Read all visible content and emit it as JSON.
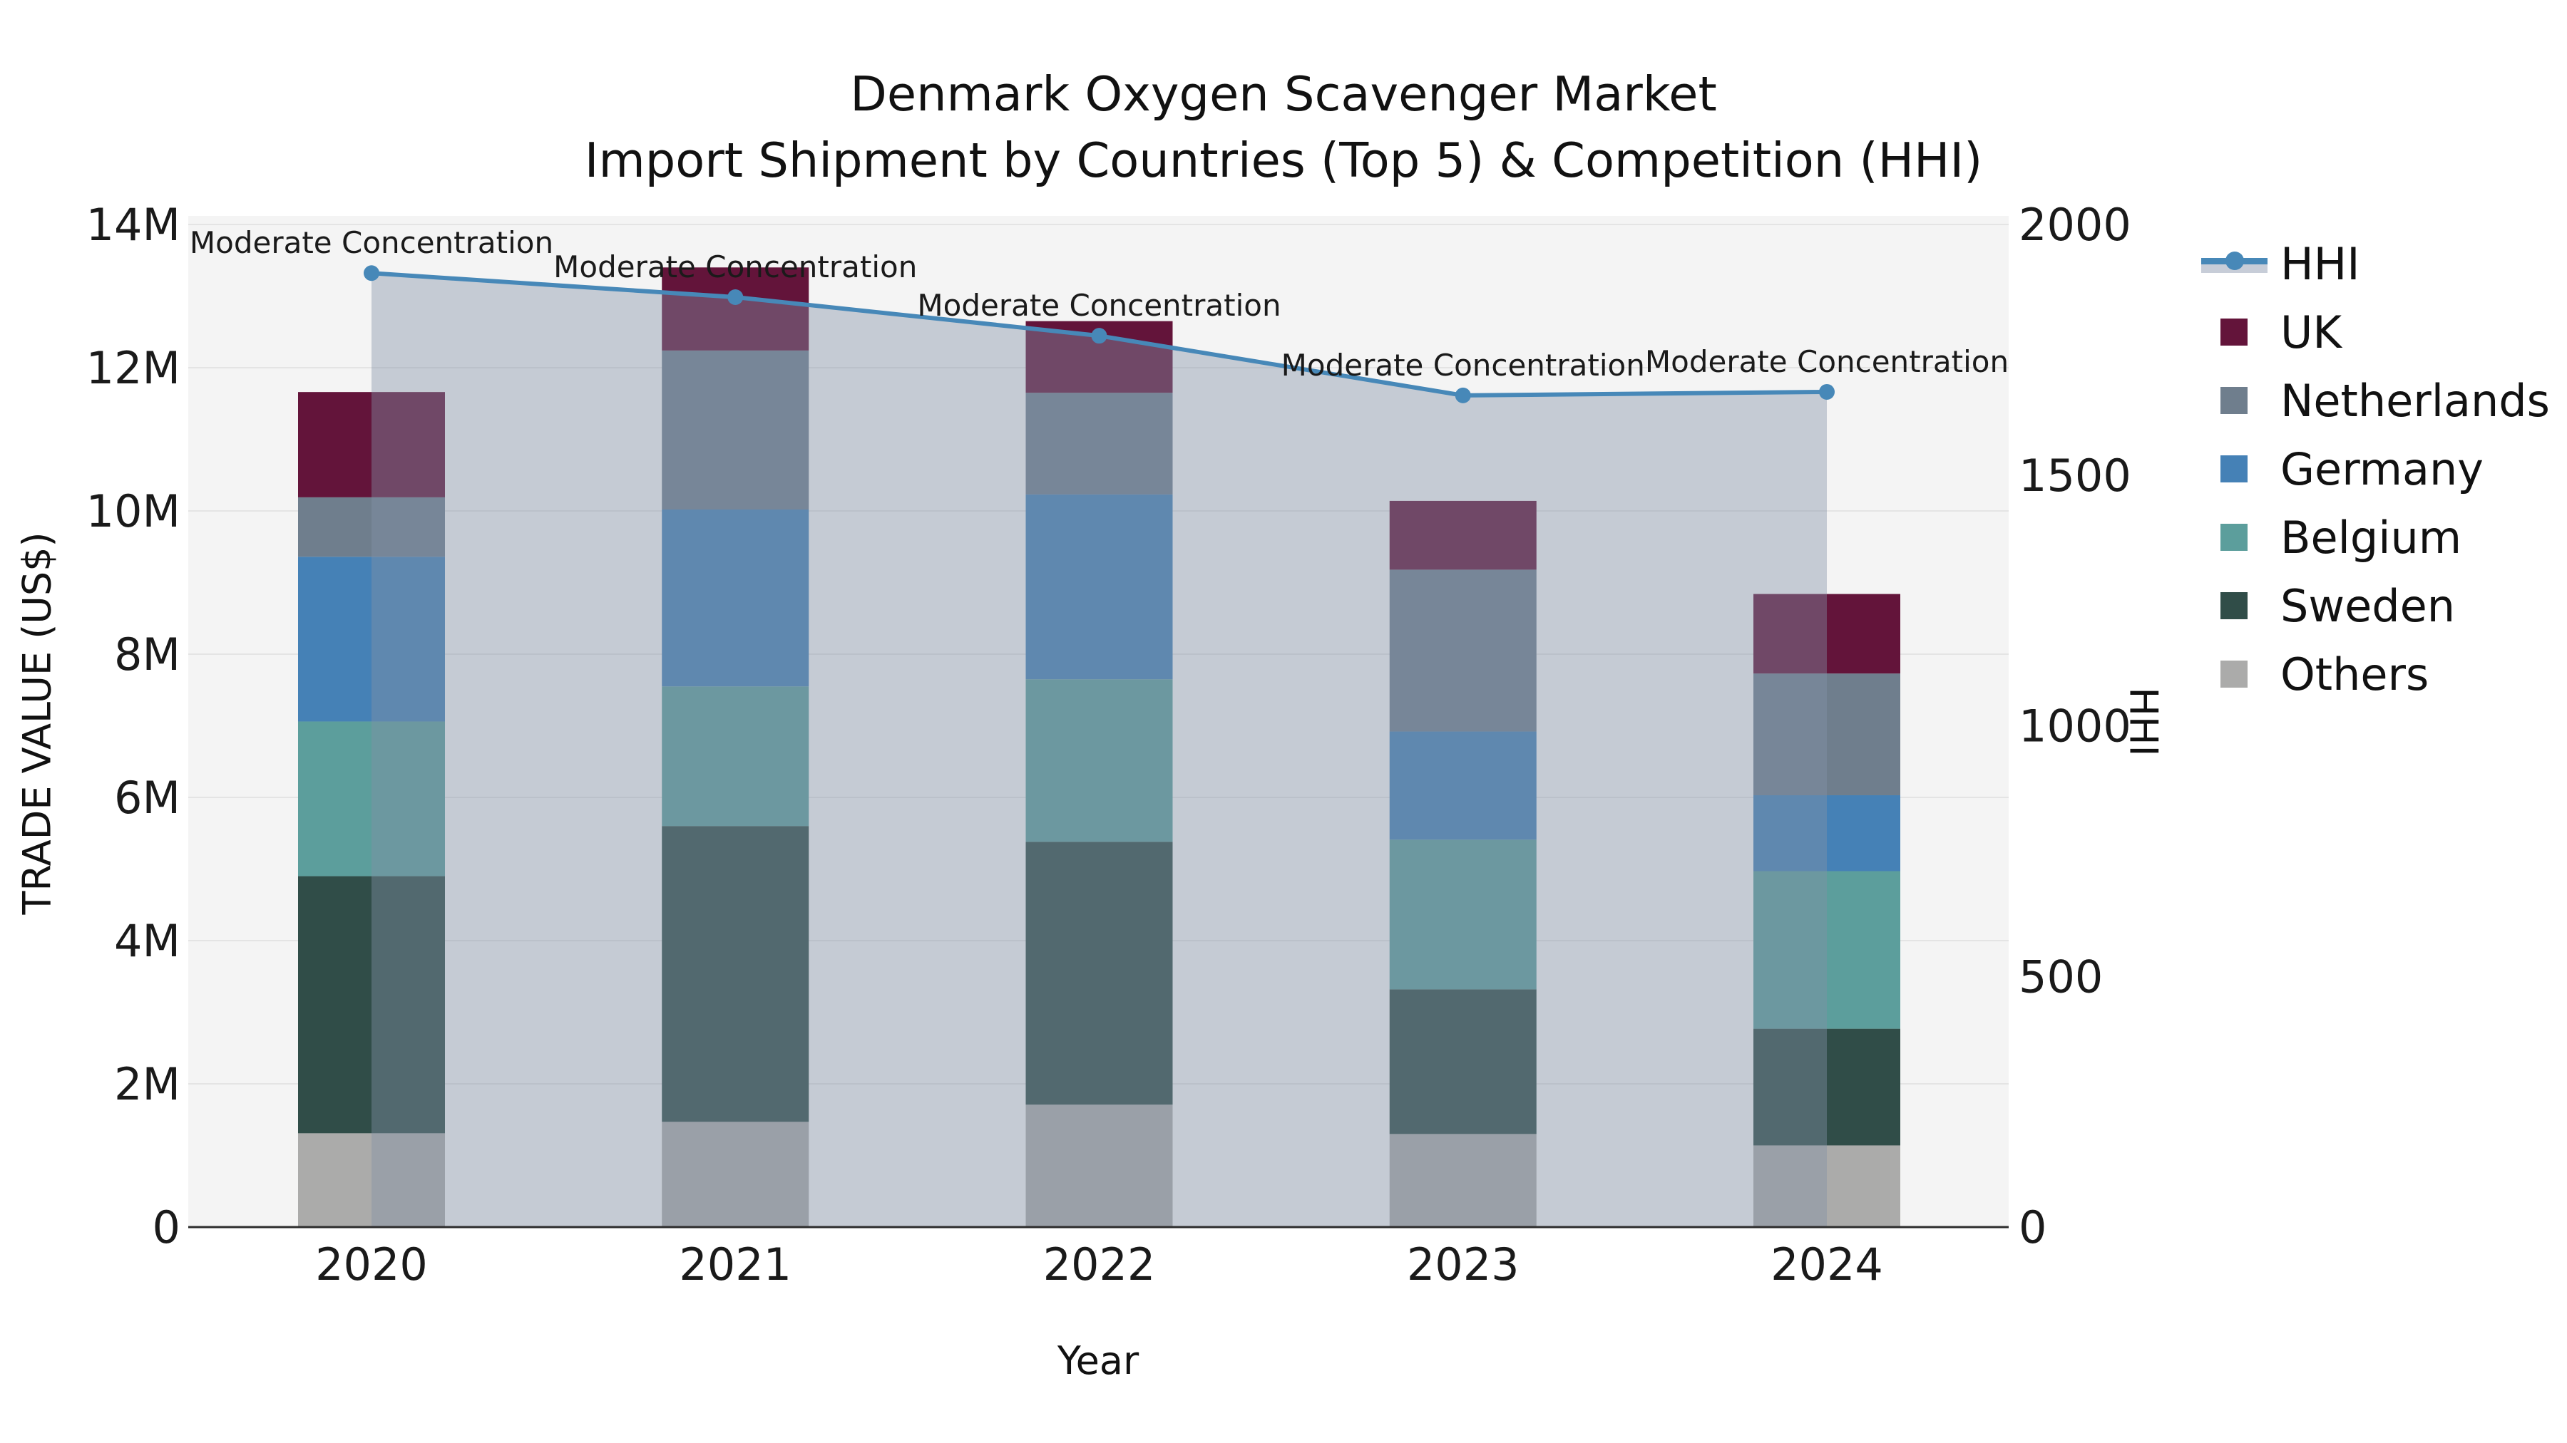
{
  "title": {
    "line1": "Denmark Oxygen Scavenger Market",
    "line2": "Import Shipment by Countries (Top 5) & Competition (HHI)"
  },
  "axes": {
    "y_left_label": "TRADE VALUE (US$)",
    "y_right_label": "HHI",
    "x_label": "Year"
  },
  "legend": [
    {
      "label": "HHI",
      "type": "line",
      "color": "#4788b8",
      "band_color": "#c7cdd8"
    },
    {
      "label": "UK",
      "type": "patch",
      "color": "#63143a"
    },
    {
      "label": "Netherlands",
      "type": "patch",
      "color": "#6f7e8d"
    },
    {
      "label": "Germany",
      "type": "patch",
      "color": "#4581b6"
    },
    {
      "label": "Belgium",
      "type": "patch",
      "color": "#5c9e9c"
    },
    {
      "label": "Sweden",
      "type": "patch",
      "color": "#304d48"
    },
    {
      "label": "Others",
      "type": "patch",
      "color": "#ababaa"
    }
  ],
  "chart_data": {
    "type": "combo-stacked-bar-line",
    "categories": [
      "2020",
      "2021",
      "2022",
      "2023",
      "2024"
    ],
    "bar_unit": "million US$",
    "series": [
      {
        "name": "Others",
        "color": "#ababaa",
        "values": [
          1.31,
          1.47,
          1.71,
          1.3,
          1.14
        ]
      },
      {
        "name": "Sweden",
        "color": "#304d48",
        "values": [
          3.59,
          4.13,
          3.67,
          2.02,
          1.63
        ]
      },
      {
        "name": "Belgium",
        "color": "#5c9e9c",
        "values": [
          2.16,
          1.95,
          2.27,
          2.09,
          2.2
        ]
      },
      {
        "name": "Germany",
        "color": "#4581b6",
        "values": [
          2.3,
          2.47,
          2.58,
          1.51,
          1.06
        ]
      },
      {
        "name": "Netherlands",
        "color": "#6f7e8d",
        "values": [
          0.83,
          2.22,
          1.42,
          2.26,
          1.7
        ]
      },
      {
        "name": "UK",
        "color": "#63143a",
        "values": [
          1.47,
          1.16,
          1.0,
          0.96,
          1.11
        ]
      }
    ],
    "bar_totals_million": [
      11.66,
      13.4,
      12.65,
      10.14,
      8.84
    ],
    "line": {
      "name": "HHI",
      "color": "#4788b8",
      "area_fill": "rgba(130,145,167,0.42)",
      "values": [
        1903,
        1855,
        1778,
        1659,
        1666
      ],
      "point_annotations": [
        "Moderate Concentration",
        "Moderate Concentration",
        "Moderate Concentration",
        "Moderate Concentration",
        "Moderate Concentration"
      ]
    },
    "y_left": {
      "label": "TRADE VALUE (US$)",
      "tick_values": [
        0,
        2,
        4,
        6,
        8,
        10,
        12,
        14
      ],
      "tick_labels": [
        "0",
        "2M",
        "4M",
        "6M",
        "8M",
        "10M",
        "12M",
        "14M"
      ],
      "range_million": [
        0,
        14.12
      ]
    },
    "y_right": {
      "label": "HHI",
      "tick_values": [
        0,
        500,
        1000,
        1500,
        2000
      ],
      "tick_labels": [
        "0",
        "500",
        "1000",
        "1500",
        "2000"
      ],
      "range": [
        0,
        2018
      ]
    },
    "grid": "horizontal-major",
    "legend_position": "right",
    "plot_bg": "#f4f4f4",
    "grid_color": "#e4e4e4",
    "spine_color": "#2d2d2d"
  }
}
